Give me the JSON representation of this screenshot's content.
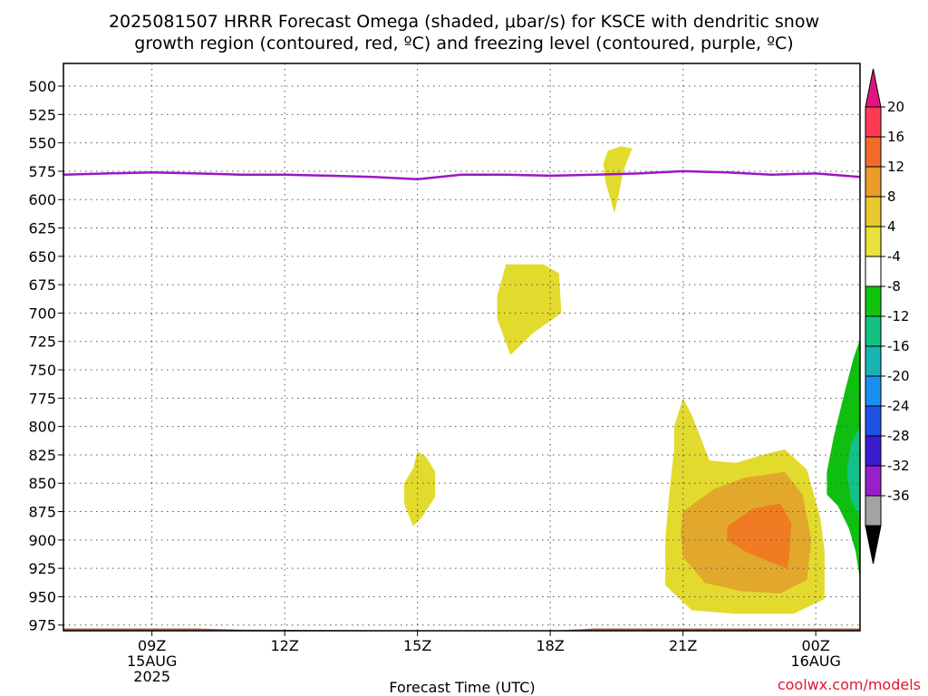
{
  "chart_data": {
    "type": "contour",
    "title_line1": "2025081507 HRRR Forecast Omega (shaded, μbar/s) for KSCE with dendritic snow",
    "title_line2": "growth region (contoured, red, ºC) and freezing level (contoured, purple, ºC)",
    "xlabel": "Forecast Time (UTC)",
    "credit": "coolwx.com/models",
    "x_ticks": [
      {
        "hour": 2,
        "lines": [
          "09Z",
          "15AUG",
          "2025"
        ]
      },
      {
        "hour": 5,
        "lines": [
          "12Z"
        ]
      },
      {
        "hour": 8,
        "lines": [
          "15Z"
        ]
      },
      {
        "hour": 11,
        "lines": [
          "18Z"
        ]
      },
      {
        "hour": 14,
        "lines": [
          "21Z"
        ]
      },
      {
        "hour": 17,
        "lines": [
          "00Z",
          "16AUG"
        ]
      }
    ],
    "xlim": [
      0,
      18
    ],
    "ylim": [
      980,
      480
    ],
    "y_ticks": [
      500,
      525,
      550,
      575,
      600,
      625,
      650,
      675,
      700,
      725,
      750,
      775,
      800,
      825,
      850,
      875,
      900,
      925,
      950,
      975
    ],
    "grid": true,
    "colorbar": {
      "ticks": [
        "20",
        "16",
        "12",
        "8",
        "4",
        "-4",
        "-8",
        "-12",
        "-16",
        "-20",
        "-24",
        "-28",
        "-32",
        "-36"
      ],
      "colors_top_to_bottom": [
        "#ff3a55",
        "#f26b2a",
        "#eb9b2a",
        "#e9c930",
        "#e9e23a",
        "#ffffff",
        "#10c410",
        "#15c083",
        "#18b3b3",
        "#1a8fef",
        "#2052e6",
        "#3a1dcf",
        "#9a1fcc",
        "#a3a3a3"
      ],
      "over_color": "#e2157f",
      "under_color": "#000000"
    },
    "freezing_level": {
      "color": "#9b16c9",
      "points": [
        [
          0,
          578
        ],
        [
          1,
          577
        ],
        [
          2,
          576
        ],
        [
          3,
          577
        ],
        [
          4,
          578
        ],
        [
          5,
          578
        ],
        [
          6,
          579
        ],
        [
          7,
          580
        ],
        [
          8,
          582
        ],
        [
          9,
          578
        ],
        [
          10,
          578
        ],
        [
          11,
          579
        ],
        [
          12,
          578
        ],
        [
          13,
          577
        ],
        [
          14,
          575
        ],
        [
          15,
          576
        ],
        [
          16,
          578
        ],
        [
          17,
          577
        ],
        [
          18,
          580
        ]
      ]
    },
    "omega_regions": [
      {
        "level": 4,
        "color": "#e3da2e",
        "points": [
          [
            12.3,
            557
          ],
          [
            12.6,
            553
          ],
          [
            12.85,
            555
          ],
          [
            12.65,
            575
          ],
          [
            12.55,
            595
          ],
          [
            12.45,
            612
          ],
          [
            12.25,
            585
          ],
          [
            12.2,
            568
          ]
        ]
      },
      {
        "level": 4,
        "color": "#e3da2e",
        "points": [
          [
            10.0,
            657
          ],
          [
            10.85,
            657
          ],
          [
            11.2,
            665
          ],
          [
            11.25,
            700
          ],
          [
            10.6,
            718
          ],
          [
            10.1,
            737
          ],
          [
            9.8,
            705
          ],
          [
            9.8,
            685
          ]
        ]
      },
      {
        "level": 4,
        "color": "#e3da2e",
        "points": [
          [
            7.9,
            837
          ],
          [
            8.0,
            822
          ],
          [
            8.2,
            827
          ],
          [
            8.4,
            840
          ],
          [
            8.4,
            862
          ],
          [
            8.1,
            880
          ],
          [
            7.9,
            888
          ],
          [
            7.7,
            868
          ],
          [
            7.7,
            850
          ]
        ]
      },
      {
        "level": 4,
        "color": "#e3da2e",
        "points": [
          [
            13.8,
            800
          ],
          [
            14.0,
            775
          ],
          [
            14.2,
            790
          ],
          [
            14.6,
            830
          ],
          [
            15.2,
            832
          ],
          [
            15.8,
            825
          ],
          [
            16.3,
            820
          ],
          [
            16.8,
            838
          ],
          [
            17.1,
            880
          ],
          [
            17.2,
            910
          ],
          [
            17.2,
            952
          ],
          [
            16.5,
            965
          ],
          [
            15.2,
            965
          ],
          [
            14.2,
            962
          ],
          [
            13.6,
            940
          ],
          [
            13.6,
            900
          ],
          [
            13.7,
            855
          ],
          [
            13.8,
            820
          ]
        ]
      },
      {
        "level": 8,
        "color": "#e2a82c",
        "points": [
          [
            14.0,
            875
          ],
          [
            14.7,
            855
          ],
          [
            15.4,
            845
          ],
          [
            16.3,
            840
          ],
          [
            16.7,
            860
          ],
          [
            16.9,
            900
          ],
          [
            16.8,
            935
          ],
          [
            16.2,
            947
          ],
          [
            15.3,
            945
          ],
          [
            14.5,
            938
          ],
          [
            14.0,
            915
          ],
          [
            13.95,
            893
          ]
        ]
      },
      {
        "level": 12,
        "color": "#ef7c23",
        "points": [
          [
            15.0,
            888
          ],
          [
            15.6,
            872
          ],
          [
            16.2,
            868
          ],
          [
            16.45,
            885
          ],
          [
            16.4,
            915
          ],
          [
            16.35,
            925
          ],
          [
            16.0,
            920
          ],
          [
            15.4,
            910
          ],
          [
            15.0,
            900
          ]
        ]
      },
      {
        "level": -4,
        "color": "#0fbf0f",
        "points": [
          [
            18.0,
            723
          ],
          [
            18.0,
            935
          ],
          [
            17.9,
            910
          ],
          [
            17.75,
            890
          ],
          [
            17.5,
            870
          ],
          [
            17.25,
            860
          ],
          [
            17.25,
            840
          ],
          [
            17.4,
            810
          ],
          [
            17.65,
            770
          ],
          [
            17.85,
            740
          ]
        ]
      },
      {
        "level": -8,
        "color": "#14c08a",
        "points": [
          [
            18.0,
            800
          ],
          [
            18.0,
            880
          ],
          [
            17.8,
            865
          ],
          [
            17.7,
            840
          ],
          [
            17.8,
            815
          ]
        ]
      }
    ],
    "terrain": {
      "color": "#a95c37",
      "points": [
        [
          0,
          978
        ],
        [
          3,
          978
        ],
        [
          4,
          979
        ],
        [
          10,
          980
        ],
        [
          11,
          980
        ],
        [
          12,
          978
        ],
        [
          18,
          978
        ]
      ]
    }
  }
}
